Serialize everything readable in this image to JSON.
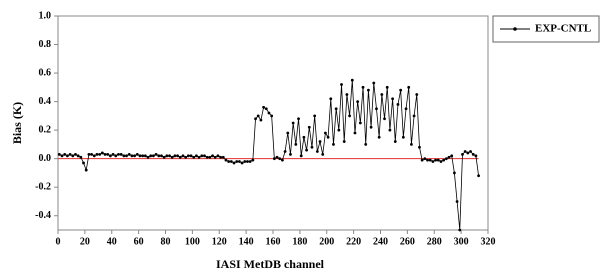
{
  "chart_data": {
    "type": "line",
    "xlabel": "IASI MetDB channel",
    "ylabel": "Bias (K)",
    "x": [
      1,
      3,
      5,
      7,
      9,
      11,
      13,
      15,
      17,
      19,
      21,
      23,
      25,
      27,
      29,
      31,
      33,
      35,
      37,
      39,
      41,
      43,
      45,
      47,
      49,
      51,
      53,
      55,
      57,
      59,
      61,
      63,
      65,
      67,
      69,
      71,
      73,
      75,
      77,
      79,
      81,
      83,
      85,
      87,
      89,
      91,
      93,
      95,
      97,
      99,
      101,
      103,
      105,
      107,
      109,
      111,
      113,
      115,
      117,
      119,
      121,
      123,
      125,
      127,
      129,
      131,
      133,
      135,
      137,
      139,
      141,
      143,
      145,
      147,
      149,
      151,
      153,
      155,
      157,
      159,
      161,
      163,
      165,
      167,
      169,
      171,
      173,
      175,
      177,
      179,
      181,
      183,
      185,
      187,
      189,
      191,
      193,
      195,
      197,
      199,
      201,
      203,
      205,
      207,
      209,
      211,
      213,
      215,
      217,
      219,
      221,
      223,
      225,
      227,
      229,
      231,
      233,
      235,
      237,
      239,
      241,
      243,
      245,
      247,
      249,
      251,
      253,
      255,
      257,
      259,
      261,
      263,
      265,
      267,
      269,
      271,
      273,
      275,
      277,
      279,
      281,
      283,
      285,
      287,
      289,
      291,
      293,
      295,
      297,
      299,
      301,
      303,
      305,
      307,
      309,
      311,
      313
    ],
    "series": [
      {
        "name": "EXP-CNTL",
        "color": "#000000",
        "values": [
          0.03,
          0.02,
          0.03,
          0.02,
          0.03,
          0.02,
          0.03,
          0.02,
          0.01,
          -0.03,
          -0.08,
          0.03,
          0.03,
          0.02,
          0.03,
          0.03,
          0.04,
          0.03,
          0.03,
          0.02,
          0.03,
          0.02,
          0.03,
          0.03,
          0.02,
          0.02,
          0.03,
          0.02,
          0.02,
          0.03,
          0.02,
          0.02,
          0.02,
          0.01,
          0.02,
          0.02,
          0.03,
          0.02,
          0.02,
          0.01,
          0.02,
          0.02,
          0.01,
          0.02,
          0.02,
          0.01,
          0.02,
          0.01,
          0.02,
          0.02,
          0.01,
          0.02,
          0.01,
          0.02,
          0.02,
          0.01,
          0.01,
          0.02,
          0.01,
          0.02,
          0.01,
          0.01,
          -0.01,
          -0.02,
          -0.02,
          -0.03,
          -0.02,
          -0.02,
          -0.03,
          -0.02,
          -0.02,
          -0.02,
          -0.01,
          0.28,
          0.3,
          0.27,
          0.36,
          0.35,
          0.32,
          0.3,
          0.0,
          0.01,
          0.0,
          -0.01,
          0.05,
          0.18,
          0.03,
          0.25,
          0.1,
          0.28,
          0.02,
          0.15,
          0.06,
          0.22,
          0.08,
          0.3,
          0.05,
          0.12,
          0.03,
          0.18,
          0.15,
          0.42,
          0.1,
          0.35,
          0.2,
          0.52,
          0.12,
          0.45,
          0.3,
          0.55,
          0.18,
          0.4,
          0.25,
          0.5,
          0.1,
          0.48,
          0.22,
          0.53,
          0.35,
          0.15,
          0.45,
          0.28,
          0.5,
          0.2,
          0.42,
          0.12,
          0.38,
          0.48,
          0.15,
          0.35,
          0.5,
          0.1,
          0.3,
          0.45,
          0.08,
          -0.01,
          0.0,
          -0.01,
          -0.01,
          -0.02,
          -0.01,
          -0.01,
          -0.02,
          -0.01,
          0.0,
          0.01,
          0.02,
          -0.1,
          -0.3,
          -0.5,
          0.03,
          0.05,
          0.04,
          0.05,
          0.03,
          0.02,
          -0.12
        ]
      }
    ],
    "xlim": [
      0,
      320
    ],
    "xticks": [
      0,
      20,
      40,
      60,
      80,
      100,
      120,
      140,
      160,
      180,
      200,
      220,
      240,
      260,
      280,
      300,
      320
    ],
    "ylim": [
      -0.5,
      1.0
    ],
    "yticks": [
      {
        "value": 1.0,
        "label": "1.0"
      },
      0.8,
      0.6,
      0.4,
      0.2,
      {
        "value": 0.0,
        "label": "0.0"
      },
      -0.2,
      -0.4
    ],
    "zero_line_color": "#e03030",
    "legend": "outside-right"
  }
}
